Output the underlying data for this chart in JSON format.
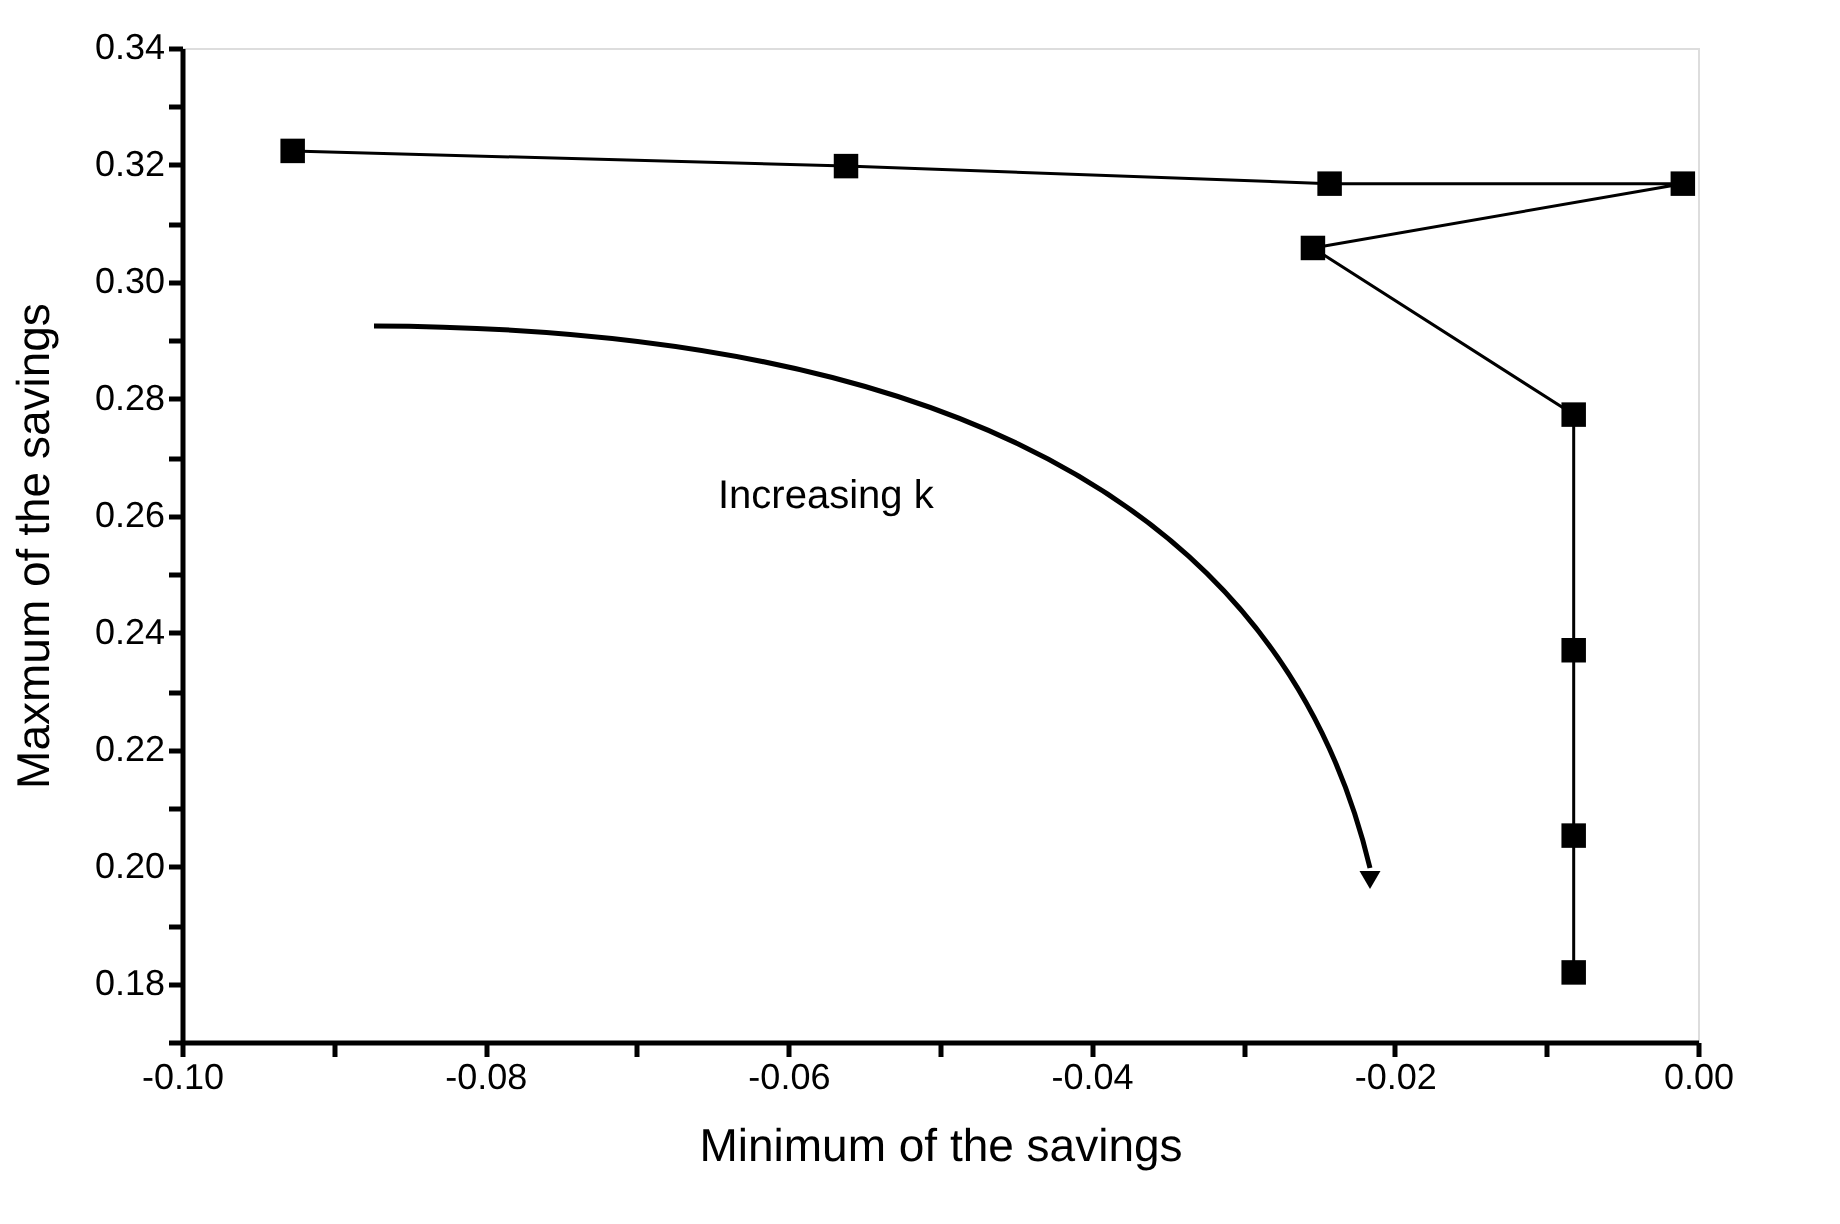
{
  "chart_data": {
    "type": "line",
    "xlabel": "Minimum of the savings",
    "ylabel": "Maxmum of the savings",
    "x": [
      -0.0927,
      -0.0562,
      -0.0243,
      -0.001,
      -0.0254,
      -0.0082,
      -0.0082,
      -0.0082,
      -0.0082
    ],
    "series": [
      {
        "color": "#000000",
        "values": [
          0.3224,
          0.3198,
          0.3168,
          0.3168,
          0.3058,
          0.2773,
          0.237,
          0.2053,
          0.1819
        ]
      }
    ],
    "marker": "square",
    "line_style": "solid",
    "grid": false,
    "xlim": [
      -0.1,
      0.0
    ],
    "xticks": [
      {
        "value": -0.1,
        "label": "-0.10"
      },
      {
        "value": -0.09,
        "label": null
      },
      {
        "value": -0.08,
        "label": "-0.08"
      },
      {
        "value": -0.07,
        "label": null
      },
      {
        "value": -0.06,
        "label": "-0.06"
      },
      {
        "value": -0.05,
        "label": null
      },
      {
        "value": -0.04,
        "label": "-0.04"
      },
      {
        "value": -0.03,
        "label": null
      },
      {
        "value": -0.02,
        "label": "-0.02"
      },
      {
        "value": -0.01,
        "label": null
      },
      {
        "value": 0.0,
        "label": "0.00"
      }
    ],
    "ylim": [
      0.17,
      0.34
    ],
    "yticks": [
      {
        "value": 0.17,
        "label": null
      },
      {
        "value": 0.18,
        "label": "0.18"
      },
      {
        "value": 0.19,
        "label": null
      },
      {
        "value": 0.2,
        "label": "0.20"
      },
      {
        "value": 0.21,
        "label": null
      },
      {
        "value": 0.22,
        "label": "0.22"
      },
      {
        "value": 0.23,
        "label": null
      },
      {
        "value": 0.24,
        "label": "0.24"
      },
      {
        "value": 0.25,
        "label": null
      },
      {
        "value": 0.26,
        "label": "0.26"
      },
      {
        "value": 0.27,
        "label": null
      },
      {
        "value": 0.28,
        "label": "0.28"
      },
      {
        "value": 0.29,
        "label": null
      },
      {
        "value": 0.3,
        "label": "0.30"
      },
      {
        "value": 0.31,
        "label": null
      },
      {
        "value": 0.32,
        "label": "0.32"
      },
      {
        "value": 0.33,
        "label": null
      },
      {
        "value": 0.34,
        "label": "0.34"
      }
    ],
    "annotations": [
      "Increasing k"
    ]
  }
}
